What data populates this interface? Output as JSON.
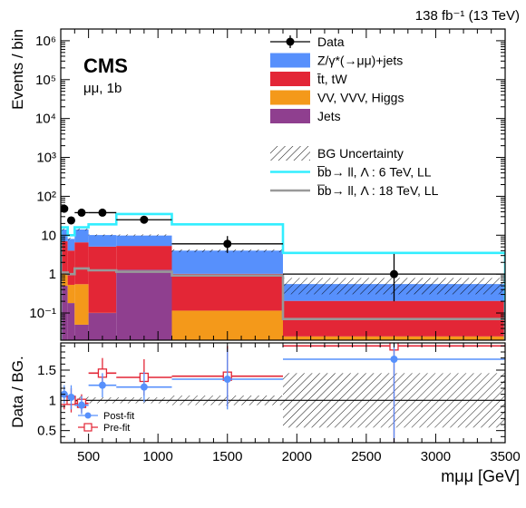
{
  "chart_data": {
    "type": "bar",
    "top_right_label": "138 fb⁻¹ (13 TeV)",
    "experiment": "CMS",
    "channel": "μμ, 1b",
    "xlabel": "mμμ [GeV]",
    "ylabel_top": "Events / bin",
    "ylabel_bottom": "Data / BG.",
    "xlim": [
      300,
      3500
    ],
    "ylim_top": [
      0.02,
      2000000
    ],
    "ylog_top": true,
    "ylim_bottom": [
      0.3,
      1.95
    ],
    "x_ticks": [
      "500",
      "1000",
      "1500",
      "2000",
      "2500",
      "3000",
      "3500"
    ],
    "y_ticks_top": [
      "10⁻¹",
      "1",
      "10",
      "10²",
      "10³",
      "10⁴",
      "10⁵",
      "10⁶"
    ],
    "y_ticks_bottom": [
      "0.5",
      "1",
      "1.5"
    ],
    "bin_edges": [
      300,
      350,
      400,
      500,
      700,
      1100,
      1900,
      3500
    ],
    "stack": [
      {
        "name": "Jets",
        "color": "#8f3f8f",
        "values": [
          0.5,
          0.18,
          0.05,
          0.1,
          1.3,
          0.005,
          0.005
        ]
      },
      {
        "name": "VV, VVV, Higgs",
        "color": "#f4991a",
        "values": [
          0.5,
          0.35,
          0.5,
          0.001,
          0.001,
          0.11,
          0.02
        ]
      },
      {
        "name": "t̄t, tW",
        "color": "#e32636",
        "values": [
          6.0,
          3.5,
          6.0,
          5.0,
          4.0,
          0.9,
          0.18
        ]
      },
      {
        "name": "Z/γ*(→μμ)+jets",
        "color": "#5790fc",
        "values": [
          7.0,
          4.0,
          7.5,
          5.0,
          4.5,
          3.0,
          0.35
        ]
      }
    ],
    "bg_total": [
      14.0,
      8.0,
      14.0,
      10.0,
      10.0,
      4.0,
      0.55
    ],
    "signals": [
      {
        "name": "b̅b→ ll,   Λ : 6 TeV, LL",
        "color": "#33eeff",
        "values": [
          16.0,
          10.0,
          16.0,
          19.0,
          35.0,
          19.0,
          3.5
        ]
      },
      {
        "name": "b̅b→ ll,   Λ : 18 TeV, LL",
        "color": "#999999",
        "values": [
          1.1,
          1.0,
          1.4,
          1.25,
          1.15,
          0.92,
          0.07
        ]
      }
    ],
    "data": {
      "name": "Data",
      "x": [
        325,
        375,
        450,
        600,
        900,
        1500,
        2700
      ],
      "y": [
        48,
        24,
        38,
        38,
        25,
        6,
        1
      ],
      "yerr_low": [
        7,
        5,
        6,
        6,
        5,
        2.5,
        0.8
      ],
      "yerr_high": [
        8,
        6,
        7,
        7,
        6,
        3.5,
        2.3
      ]
    },
    "uncertainty_label": "BG Uncertainty",
    "ratio_band_half_width": [
      0.08,
      0.07,
      0.06,
      0.05,
      0.05,
      0.08,
      0.45
    ],
    "ratio": {
      "postfit": {
        "name": "Post-fit",
        "color": "#5790fc",
        "y": [
          1.1,
          1.05,
          0.92,
          1.25,
          1.22,
          1.35,
          1.68
        ],
        "err": [
          0.15,
          0.2,
          0.15,
          0.2,
          0.25,
          0.5,
          1.6
        ]
      },
      "prefit": {
        "name": "Pre-fit",
        "color": "#e32636",
        "y": [
          1.0,
          1.0,
          0.95,
          1.45,
          1.38,
          1.4,
          1.9
        ],
        "err": [
          0.15,
          0.2,
          0.15,
          0.25,
          0.3,
          0.5,
          1.6
        ]
      }
    }
  }
}
